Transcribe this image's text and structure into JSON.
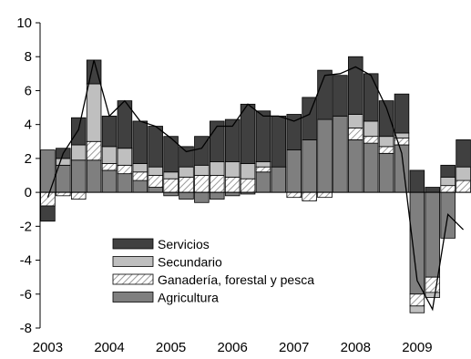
{
  "chart_data": {
    "type": "bar",
    "subtype": "stacked-bar-with-line",
    "x_tick_labels": [
      "2003",
      "2004",
      "2005",
      "2006",
      "2007",
      "2008",
      "2009"
    ],
    "periods": [
      "2003Q1",
      "2003Q2",
      "2003Q3",
      "2003Q4",
      "2004Q1",
      "2004Q2",
      "2004Q3",
      "2004Q4",
      "2005Q1",
      "2005Q2",
      "2005Q3",
      "2005Q4",
      "2006Q1",
      "2006Q2",
      "2006Q3",
      "2006Q4",
      "2007Q1",
      "2007Q2",
      "2007Q3",
      "2007Q4",
      "2008Q1",
      "2008Q2",
      "2008Q3",
      "2008Q4",
      "2009Q1",
      "2009Q2",
      "2009Q3",
      "2009Q4"
    ],
    "ylim": [
      -8,
      10
    ],
    "y_ticks": [
      -8,
      -6,
      -4,
      -2,
      0,
      2,
      4,
      6,
      8,
      10
    ],
    "grid": false,
    "legend_position": "lower-left",
    "series": [
      {
        "name": "Agricultura",
        "fill": "#7f7f7f",
        "values": [
          2.5,
          1.6,
          1.9,
          1.9,
          1.3,
          1.1,
          0.7,
          0.3,
          -0.2,
          -0.4,
          -0.6,
          -0.4,
          -0.2,
          -0.1,
          1.2,
          1.5,
          2.5,
          3.1,
          4.3,
          4.5,
          3.1,
          2.9,
          2.3,
          2.8,
          -6.0,
          -5.0,
          -2.7,
          0.0
        ]
      },
      {
        "name": "Ganadería, forestal y pesca",
        "fill": "#e6e6e6",
        "hatch": true,
        "values": [
          -0.8,
          -0.2,
          -0.4,
          1.1,
          0.4,
          0.5,
          0.5,
          0.7,
          0.8,
          0.9,
          1.0,
          1.0,
          0.9,
          0.8,
          0.3,
          0.0,
          -0.3,
          -0.5,
          -0.3,
          0.0,
          0.7,
          0.4,
          0.4,
          0.4,
          -0.7,
          -0.9,
          0.4,
          0.7
        ]
      },
      {
        "name": "Secundario",
        "fill": "#bfbfbf",
        "values": [
          0.0,
          0.4,
          0.9,
          3.4,
          1.0,
          1.0,
          0.5,
          0.5,
          0.4,
          0.6,
          0.6,
          0.8,
          0.9,
          0.9,
          0.3,
          0.0,
          0.0,
          0.0,
          0.0,
          0.0,
          0.8,
          0.9,
          0.6,
          0.3,
          -0.4,
          -0.3,
          0.5,
          0.8
        ]
      },
      {
        "name": "Servicios",
        "fill": "#404040",
        "values": [
          -0.9,
          0.6,
          1.6,
          1.4,
          1.8,
          2.8,
          2.5,
          2.4,
          2.1,
          1.2,
          1.7,
          2.4,
          2.5,
          3.5,
          3.0,
          3.0,
          2.1,
          2.5,
          2.9,
          2.4,
          3.4,
          2.8,
          2.1,
          2.3,
          1.3,
          0.3,
          0.7,
          1.6
        ]
      }
    ],
    "line": {
      "name": "Total",
      "color": "#000000",
      "values": [
        -0.3,
        2.3,
        3.7,
        7.8,
        4.5,
        5.4,
        4.2,
        3.9,
        3.2,
        2.4,
        2.6,
        3.9,
        3.9,
        5.2,
        4.5,
        4.5,
        4.2,
        4.6,
        6.9,
        7.0,
        7.4,
        6.9,
        5.0,
        2.3,
        -5.2,
        -6.9,
        -1.3,
        -2.2
      ]
    }
  },
  "legend_order": [
    "Servicios",
    "Secundario",
    "Ganadería, forestal y pesca",
    "Agricultura"
  ]
}
